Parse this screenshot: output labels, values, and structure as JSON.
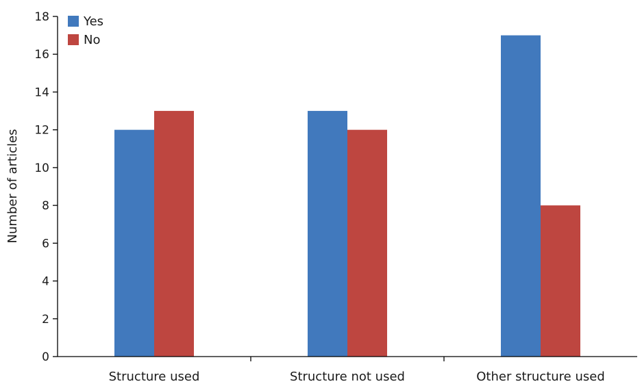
{
  "chart_data": {
    "type": "bar",
    "categories": [
      "Structure used",
      "Structure not used",
      "Other structure used"
    ],
    "series": [
      {
        "name": "Yes",
        "values": [
          12,
          13,
          17
        ],
        "color": "#4179BD"
      },
      {
        "name": "No",
        "values": [
          13,
          12,
          8
        ],
        "color": "#BE4640"
      }
    ],
    "xlabel": "",
    "ylabel": "Number of articles",
    "ylim": [
      0,
      18
    ],
    "yticks": [
      0,
      2,
      4,
      6,
      8,
      10,
      12,
      14,
      16,
      18
    ],
    "grid": false,
    "legend_position": "top-left"
  }
}
